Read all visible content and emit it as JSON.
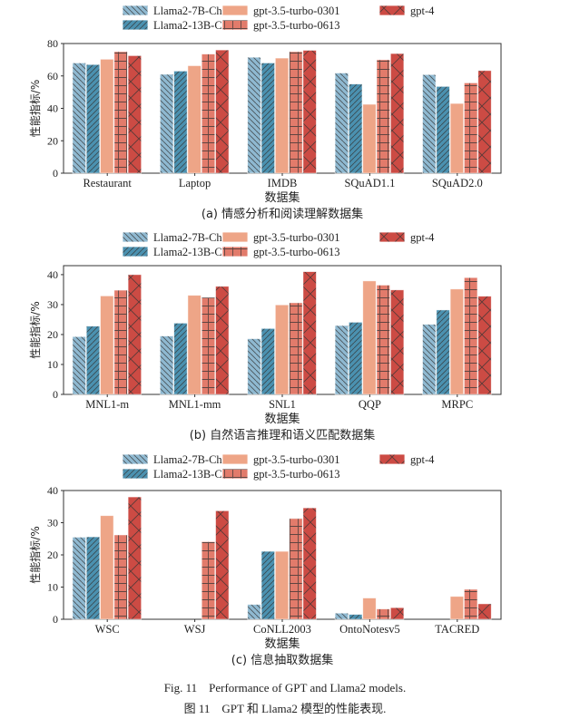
{
  "colors": {
    "Llama2-7B-Chat": "#8fb9d1",
    "Llama2-13B-Chat": "#4b91b0",
    "gpt-3.5-turbo-0301": "#eea587",
    "gpt-3.5-turbo-0613": "#e27b6b",
    "gpt-4": "#cc4b44"
  },
  "hatches": [
    "diag-back",
    "diag-forward",
    "none",
    "grid",
    "cross"
  ],
  "chart_data": [
    {
      "type": "bar",
      "xlabel": "数据集",
      "ylabel": "性能指标/%",
      "caption": "(a) 情感分析和阅读理解数据集",
      "ylim": [
        0,
        80
      ],
      "yticks": [
        0,
        20,
        40,
        60,
        80
      ],
      "categories": [
        "Restaurant",
        "Laptop",
        "IMDB",
        "SQuAD1.1",
        "SQuAD2.0"
      ],
      "series": [
        {
          "name": "Llama2-7B-Chat",
          "values": [
            68,
            61,
            71.5,
            61.8,
            60.8
          ]
        },
        {
          "name": "Llama2-13B-Chat",
          "values": [
            67,
            63,
            68,
            55,
            53.5
          ]
        },
        {
          "name": "gpt-3.5-turbo-0301",
          "values": [
            70.3,
            66.3,
            71,
            42.5,
            43
          ]
        },
        {
          "name": "gpt-3.5-turbo-0613",
          "values": [
            75,
            73.5,
            75,
            70,
            55.7
          ]
        },
        {
          "name": "gpt-4",
          "values": [
            72.5,
            76,
            75.8,
            73.8,
            63.3
          ]
        }
      ]
    },
    {
      "type": "bar",
      "xlabel": "数据集",
      "ylabel": "性能指标/%",
      "caption": "(b) 自然语言推理和语义匹配数据集",
      "ylim": [
        0,
        43
      ],
      "yticks": [
        0,
        10,
        20,
        30,
        40
      ],
      "categories": [
        "MNL1-m",
        "MNL1-mm",
        "SNL1",
        "QQP",
        "MRPC"
      ],
      "series": [
        {
          "name": "Llama2-7B-Chat",
          "values": [
            19.3,
            19.5,
            18.6,
            23,
            23.4
          ]
        },
        {
          "name": "Llama2-13B-Chat",
          "values": [
            22.8,
            23.8,
            22,
            24.1,
            28.2
          ]
        },
        {
          "name": "gpt-3.5-turbo-0301",
          "values": [
            32.9,
            33.1,
            29.9,
            37.9,
            35.2
          ]
        },
        {
          "name": "gpt-3.5-turbo-0613",
          "values": [
            34.8,
            32.4,
            30.6,
            36.5,
            39
          ]
        },
        {
          "name": "gpt-4",
          "values": [
            40,
            36.1,
            41,
            34.9,
            32.8
          ]
        }
      ]
    },
    {
      "type": "bar",
      "xlabel": "数据集",
      "ylabel": "性能指标/%",
      "caption": "(c) 信息抽取数据集",
      "ylim": [
        0,
        40
      ],
      "yticks": [
        0,
        10,
        20,
        30,
        40
      ],
      "categories": [
        "WSC",
        "WSJ",
        "CoNLL2003",
        "OntoNotesv5",
        "TACRED"
      ],
      "series": [
        {
          "name": "Llama2-7B-Chat",
          "values": [
            25.5,
            0,
            4.6,
            1.9,
            0
          ]
        },
        {
          "name": "Llama2-13B-Chat",
          "values": [
            25.6,
            0,
            21.1,
            1.5,
            0
          ]
        },
        {
          "name": "gpt-3.5-turbo-0301",
          "values": [
            32.2,
            0,
            21.1,
            6.6,
            7.1
          ]
        },
        {
          "name": "gpt-3.5-turbo-0613",
          "values": [
            26.2,
            24.1,
            31.3,
            3.2,
            9.3
          ]
        },
        {
          "name": "gpt-4",
          "values": [
            38,
            33.7,
            34.6,
            3.6,
            4.8
          ]
        }
      ]
    }
  ],
  "figure_caption_en": "Fig. 11    Performance of GPT and Llama2 models.",
  "figure_caption_zh": "图 11    GPT 和 Llama2 模型的性能表现."
}
